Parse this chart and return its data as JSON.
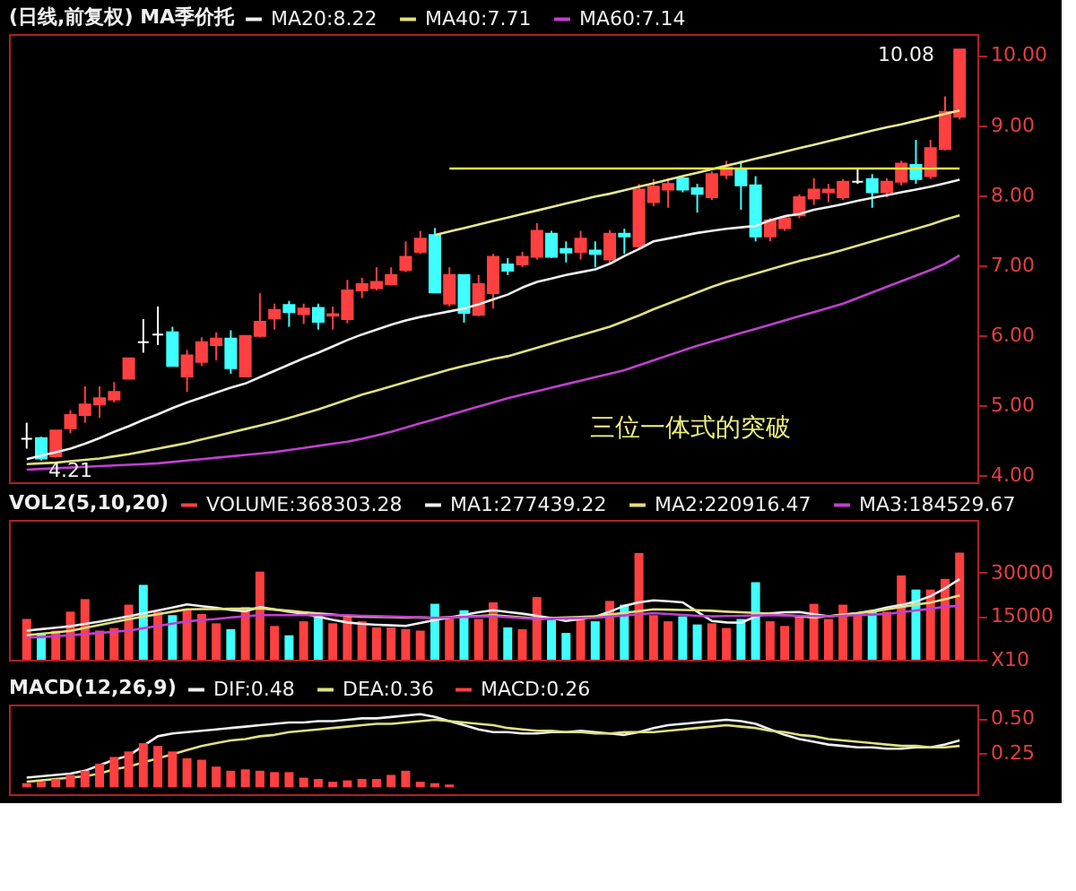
{
  "chart_data": [
    {
      "type": "candlestick",
      "legend_title": "(日线,前复权) MA季价托",
      "legend": "top",
      "tick_labels": "y",
      "grid": false,
      "categories": [
        null,
        null,
        null,
        null,
        null,
        null,
        null,
        null,
        null,
        null,
        null,
        null,
        null,
        null,
        null,
        null,
        null,
        null,
        null,
        null,
        null,
        null,
        null,
        null,
        null,
        null,
        null,
        null,
        null,
        null,
        null,
        null,
        null,
        null,
        null,
        null,
        null,
        null,
        null,
        null,
        null,
        null,
        null,
        null,
        null,
        null,
        null,
        null,
        null,
        null,
        null,
        null,
        null,
        null,
        null,
        null,
        null,
        null,
        null,
        null,
        null,
        null,
        null,
        null,
        null
      ],
      "ylim": [
        3.9,
        10.3
      ],
      "yticks": [
        {
          "value": 4,
          "label": "4.00"
        },
        {
          "value": 5,
          "label": "5.00"
        },
        {
          "value": 6,
          "label": "6.00"
        },
        {
          "value": 7,
          "label": "7.00"
        },
        {
          "value": 8,
          "label": "8.00"
        },
        {
          "value": 9,
          "label": "9.00"
        },
        {
          "value": 10,
          "label": "10.00"
        }
      ],
      "ohlc": [
        [
          4.52,
          4.75,
          4.38,
          4.52
        ],
        [
          4.53,
          4.55,
          4.21,
          4.24
        ],
        [
          4.27,
          4.64,
          4.25,
          4.64
        ],
        [
          4.67,
          4.93,
          4.6,
          4.86
        ],
        [
          4.86,
          5.27,
          4.75,
          5.01
        ],
        [
          5.01,
          5.27,
          4.82,
          5.1
        ],
        [
          5.08,
          5.33,
          5.04,
          5.19
        ],
        [
          5.38,
          5.67,
          5.38,
          5.67
        ],
        [
          5.9,
          6.23,
          5.75,
          5.9
        ],
        [
          6.01,
          6.41,
          5.86,
          6.01
        ],
        [
          6.04,
          6.12,
          5.56,
          5.56
        ],
        [
          5.41,
          5.79,
          5.19,
          5.71
        ],
        [
          5.62,
          5.97,
          5.56,
          5.9
        ],
        [
          5.86,
          6.04,
          5.64,
          5.95
        ],
        [
          5.95,
          6.07,
          5.45,
          5.53
        ],
        [
          5.41,
          5.99,
          5.41,
          5.99
        ],
        [
          5.99,
          6.6,
          5.97,
          6.19
        ],
        [
          6.24,
          6.45,
          6.08,
          6.36
        ],
        [
          6.43,
          6.49,
          6.12,
          6.33
        ],
        [
          6.3,
          6.45,
          6.16,
          6.38
        ],
        [
          6.39,
          6.45,
          6.08,
          6.19
        ],
        [
          6.28,
          6.41,
          6.08,
          6.3
        ],
        [
          6.23,
          6.79,
          6.17,
          6.64
        ],
        [
          6.64,
          6.82,
          6.53,
          6.73
        ],
        [
          6.67,
          6.97,
          6.64,
          6.76
        ],
        [
          6.73,
          6.97,
          6.71,
          6.86
        ],
        [
          6.93,
          7.34,
          6.9,
          7.12
        ],
        [
          7.19,
          7.49,
          7.16,
          7.38
        ],
        [
          7.43,
          7.53,
          6.6,
          6.61
        ],
        [
          6.45,
          6.97,
          6.41,
          6.86
        ],
        [
          6.86,
          6.86,
          6.18,
          6.32
        ],
        [
          6.29,
          6.86,
          6.27,
          6.73
        ],
        [
          6.6,
          7.16,
          6.38,
          7.12
        ],
        [
          7.01,
          7.1,
          6.86,
          6.92
        ],
        [
          7.01,
          7.19,
          6.97,
          7.12
        ],
        [
          7.12,
          7.6,
          7.08,
          7.49
        ],
        [
          7.45,
          7.49,
          7.1,
          7.12
        ],
        [
          7.23,
          7.34,
          7.04,
          7.18
        ],
        [
          7.19,
          7.49,
          7.08,
          7.38
        ],
        [
          7.21,
          7.34,
          6.97,
          7.16
        ],
        [
          7.08,
          7.5,
          7.04,
          7.45
        ],
        [
          7.45,
          7.52,
          7.16,
          7.41
        ],
        [
          7.27,
          8.16,
          7.23,
          8.08
        ],
        [
          7.9,
          8.23,
          7.84,
          8.12
        ],
        [
          8.08,
          8.24,
          7.82,
          8.16
        ],
        [
          8.24,
          8.27,
          8.04,
          8.08
        ],
        [
          8.1,
          8.16,
          7.75,
          8.02
        ],
        [
          7.97,
          8.34,
          7.93,
          8.3
        ],
        [
          8.29,
          8.49,
          8.23,
          8.39
        ],
        [
          8.36,
          8.49,
          7.79,
          8.14
        ],
        [
          8.14,
          8.27,
          7.34,
          7.41
        ],
        [
          7.41,
          7.67,
          7.34,
          7.64
        ],
        [
          7.53,
          7.71,
          7.49,
          7.67
        ],
        [
          7.71,
          8.01,
          7.67,
          7.97
        ],
        [
          7.95,
          8.24,
          7.86,
          8.08
        ],
        [
          8.04,
          8.16,
          7.9,
          8.08
        ],
        [
          7.97,
          8.23,
          7.93,
          8.19
        ],
        [
          8.19,
          8.38,
          8.16,
          8.19
        ],
        [
          8.23,
          8.3,
          7.82,
          8.04
        ],
        [
          8.04,
          8.24,
          7.97,
          8.19
        ],
        [
          8.19,
          8.49,
          8.14,
          8.45
        ],
        [
          8.43,
          8.79,
          8.16,
          8.23
        ],
        [
          8.27,
          8.79,
          8.23,
          8.67
        ],
        [
          8.66,
          9.41,
          8.64,
          9.19
        ],
        [
          9.12,
          10.08,
          9.08,
          10.08
        ]
      ],
      "colors": [
        "#ffffff",
        "#40ffff",
        "#ff4040",
        "#ff4040",
        "#ff4040",
        "#ff4040",
        "#ff4040",
        "#ff4040",
        "#ffffff",
        "#ffffff",
        "#40ffff",
        "#ff4040",
        "#ff4040",
        "#ff4040",
        "#40ffff",
        "#ff4040",
        "#ff4040",
        "#ff4040",
        "#40ffff",
        "#ff4040",
        "#40ffff",
        "#ff4040",
        "#ff4040",
        "#ff4040",
        "#ff4040",
        "#ff4040",
        "#ff4040",
        "#ff4040",
        "#40ffff",
        "#ff4040",
        "#40ffff",
        "#ff4040",
        "#ff4040",
        "#40ffff",
        "#ff4040",
        "#ff4040",
        "#40ffff",
        "#40ffff",
        "#ff4040",
        "#40ffff",
        "#ff4040",
        "#40ffff",
        "#ff4040",
        "#ff4040",
        "#ff4040",
        "#40ffff",
        "#40ffff",
        "#ff4040",
        "#ff4040",
        "#40ffff",
        "#40ffff",
        "#ff4040",
        "#ff4040",
        "#ff4040",
        "#ff4040",
        "#ff4040",
        "#ff4040",
        "#ffffff",
        "#40ffff",
        "#ff4040",
        "#ff4040",
        "#40ffff",
        "#ff4040",
        "#ff4040",
        "#ff4040"
      ],
      "series": [
        {
          "name": "MA20:8.22",
          "type": "line",
          "color": "#f0f0f0",
          "values": [
            4.23,
            4.28,
            4.33,
            4.38,
            4.45,
            4.53,
            4.62,
            4.7,
            4.79,
            4.87,
            4.96,
            5.04,
            5.11,
            5.18,
            5.25,
            5.31,
            5.4,
            5.49,
            5.58,
            5.67,
            5.75,
            5.84,
            5.93,
            6.01,
            6.08,
            6.15,
            6.21,
            6.26,
            6.3,
            6.34,
            6.38,
            6.44,
            6.51,
            6.58,
            6.68,
            6.76,
            6.81,
            6.86,
            6.9,
            6.94,
            7.02,
            7.13,
            7.23,
            7.34,
            7.38,
            7.42,
            7.46,
            7.49,
            7.52,
            7.54,
            7.56,
            7.64,
            7.7,
            7.73,
            7.79,
            7.83,
            7.87,
            7.92,
            7.96,
            8.0,
            8.04,
            8.08,
            8.12,
            8.17,
            8.22
          ]
        },
        {
          "name": "MA40:7.71",
          "type": "line",
          "color": "#e0e080",
          "values": [
            4.16,
            4.17,
            4.18,
            4.2,
            4.22,
            4.24,
            4.27,
            4.3,
            4.34,
            4.38,
            4.42,
            4.46,
            4.51,
            4.56,
            4.61,
            4.66,
            4.71,
            4.76,
            4.82,
            4.88,
            4.94,
            5.01,
            5.08,
            5.15,
            5.21,
            5.27,
            5.33,
            5.39,
            5.45,
            5.51,
            5.56,
            5.61,
            5.66,
            5.7,
            5.76,
            5.82,
            5.88,
            5.94,
            6.0,
            6.06,
            6.12,
            6.2,
            6.28,
            6.37,
            6.45,
            6.53,
            6.61,
            6.69,
            6.76,
            6.82,
            6.88,
            6.94,
            7.0,
            7.06,
            7.11,
            7.16,
            7.22,
            7.28,
            7.34,
            7.4,
            7.46,
            7.52,
            7.58,
            7.65,
            7.71
          ]
        },
        {
          "name": "MA60:7.14",
          "type": "line",
          "color": "#c040d0",
          "values": [
            4.08,
            4.09,
            4.1,
            4.11,
            4.12,
            4.13,
            4.14,
            4.15,
            4.16,
            4.17,
            4.19,
            4.21,
            4.23,
            4.25,
            4.27,
            4.29,
            4.31,
            4.33,
            4.36,
            4.39,
            4.42,
            4.45,
            4.48,
            4.52,
            4.57,
            4.62,
            4.68,
            4.74,
            4.8,
            4.86,
            4.92,
            4.98,
            5.04,
            5.1,
            5.15,
            5.2,
            5.25,
            5.3,
            5.35,
            5.4,
            5.45,
            5.5,
            5.57,
            5.64,
            5.71,
            5.78,
            5.85,
            5.91,
            5.97,
            6.03,
            6.09,
            6.15,
            6.21,
            6.27,
            6.33,
            6.39,
            6.45,
            6.53,
            6.61,
            6.69,
            6.77,
            6.85,
            6.93,
            7.02,
            7.14
          ]
        },
        {
          "type": "line",
          "color": "#e8e890",
          "values": [
            null,
            null,
            null,
            null,
            null,
            null,
            null,
            null,
            null,
            null,
            null,
            null,
            null,
            null,
            null,
            null,
            null,
            null,
            null,
            null,
            null,
            null,
            null,
            null,
            null,
            null,
            null,
            null,
            7.43,
            7.48,
            7.53,
            7.58,
            7.63,
            7.68,
            7.73,
            7.78,
            7.83,
            7.88,
            7.93,
            7.98,
            8.02,
            8.07,
            8.12,
            8.17,
            8.22,
            8.27,
            8.32,
            8.37,
            8.42,
            8.47,
            8.52,
            8.57,
            8.62,
            8.67,
            8.72,
            8.77,
            8.82,
            8.87,
            8.92,
            8.97,
            9.01,
            9.06,
            9.11,
            9.16,
            9.21
          ]
        },
        {
          "type": "line",
          "color": "#e8e840",
          "values": [
            null,
            null,
            null,
            null,
            null,
            null,
            null,
            null,
            null,
            null,
            null,
            null,
            null,
            null,
            null,
            null,
            null,
            null,
            null,
            null,
            null,
            null,
            null,
            null,
            null,
            null,
            null,
            null,
            null,
            8.38,
            8.38,
            8.38,
            8.38,
            8.38,
            8.38,
            8.38,
            8.38,
            8.38,
            8.38,
            8.38,
            8.38,
            8.38,
            8.38,
            8.38,
            8.38,
            8.38,
            8.38,
            8.38,
            8.38,
            8.38,
            8.38,
            8.38,
            8.38,
            8.38,
            8.38,
            8.38,
            8.38,
            8.38,
            8.38,
            8.38,
            8.38,
            8.38,
            8.38,
            8.38,
            8.38
          ]
        }
      ],
      "annotations": [
        "10.08",
        "4.21",
        "三位一体式的突破"
      ]
    },
    {
      "type": "bar",
      "legend_title": "VOL2(5,10,20)",
      "legend": "top",
      "tick_labels": "y",
      "grid": false,
      "categories": [
        null,
        null,
        null,
        null,
        null,
        null,
        null,
        null,
        null,
        null,
        null,
        null,
        null,
        null,
        null,
        null,
        null,
        null,
        null,
        null,
        null,
        null,
        null,
        null,
        null,
        null,
        null,
        null,
        null,
        null,
        null,
        null,
        null,
        null,
        null,
        null,
        null,
        null,
        null,
        null,
        null,
        null,
        null,
        null,
        null,
        null,
        null,
        null,
        null,
        null,
        null,
        null,
        null,
        null,
        null,
        null,
        null,
        null,
        null,
        null,
        null,
        null,
        null,
        null,
        null
      ],
      "ylim": [
        0,
        48000
      ],
      "yticks": [
        {
          "value": 0,
          "label": "X10"
        },
        15000,
        30000
      ],
      "series": [
        {
          "name": "VOLUME:368303.28",
          "color": "#ff4040",
          "values": [
            14000,
            9200,
            10000,
            16500,
            20800,
            10000,
            10900,
            18900,
            25700,
            16500,
            15300,
            17300,
            15700,
            12500,
            10500,
            18100,
            30200,
            11600,
            8400,
            13200,
            15300,
            12500,
            14900,
            13200,
            11100,
            11100,
            10500,
            10000,
            19200,
            14400,
            17000,
            14000,
            19700,
            11100,
            10500,
            21500,
            13700,
            9200,
            14000,
            13200,
            20200,
            18900,
            36600,
            15300,
            13200,
            14900,
            12100,
            12500,
            10900,
            14000,
            26600,
            13200,
            11600,
            14900,
            19200,
            14000,
            18900,
            15700,
            16500,
            16500,
            28900,
            24100,
            24100,
            27800,
            36800
          ],
          "colors": [
            "#ff4040",
            "#40ffff",
            "#ff4040",
            "#ff4040",
            "#ff4040",
            "#ff4040",
            "#ff4040",
            "#ff4040",
            "#40ffff",
            "#ff4040",
            "#40ffff",
            "#ff4040",
            "#ff4040",
            "#ff4040",
            "#40ffff",
            "#ff4040",
            "#ff4040",
            "#ff4040",
            "#40ffff",
            "#ff4040",
            "#40ffff",
            "#ff4040",
            "#ff4040",
            "#ff4040",
            "#ff4040",
            "#ff4040",
            "#ff4040",
            "#ff4040",
            "#40ffff",
            "#ff4040",
            "#40ffff",
            "#ff4040",
            "#ff4040",
            "#40ffff",
            "#ff4040",
            "#ff4040",
            "#40ffff",
            "#40ffff",
            "#ff4040",
            "#40ffff",
            "#ff4040",
            "#40ffff",
            "#ff4040",
            "#ff4040",
            "#ff4040",
            "#40ffff",
            "#40ffff",
            "#ff4040",
            "#ff4040",
            "#40ffff",
            "#40ffff",
            "#ff4040",
            "#ff4040",
            "#ff4040",
            "#ff4040",
            "#ff4040",
            "#ff4040",
            "#ff4040",
            "#40ffff",
            "#ff4040",
            "#ff4040",
            "#40ffff",
            "#ff4040",
            "#ff4040",
            "#ff4040"
          ]
        },
        {
          "name": "MA1:277439.22",
          "type": "line",
          "color": "#f0f0f0",
          "values": [
            10000,
            10500,
            11000,
            11500,
            12300,
            13100,
            14000,
            14900,
            15900,
            16900,
            17900,
            19000,
            18400,
            17800,
            17100,
            16600,
            18100,
            17300,
            16500,
            15800,
            14800,
            13700,
            12800,
            12300,
            12000,
            11800,
            11600,
            12600,
            13600,
            14500,
            15400,
            16300,
            17000,
            16400,
            15800,
            15100,
            14300,
            13300,
            14000,
            14800,
            16500,
            18500,
            19700,
            20400,
            20100,
            19700,
            16500,
            13300,
            12800,
            12700,
            14800,
            15900,
            16300,
            16400,
            15600,
            14900,
            15400,
            16000,
            16800,
            17900,
            18800,
            20000,
            21800,
            24500,
            27700
          ]
        },
        {
          "name": "MA2:220916.47",
          "type": "line",
          "color": "#e0e080",
          "values": [
            8400,
            8900,
            9400,
            9900,
            10900,
            11900,
            12900,
            13900,
            14800,
            15600,
            16500,
            17300,
            17400,
            17400,
            17500,
            17500,
            17600,
            17200,
            16800,
            16300,
            15900,
            15500,
            15100,
            14800,
            14700,
            14600,
            14500,
            14500,
            14400,
            14600,
            14800,
            15000,
            15300,
            14900,
            14500,
            14100,
            14300,
            14500,
            14700,
            14900,
            15500,
            16100,
            16700,
            17300,
            17200,
            17100,
            17000,
            16800,
            16500,
            16300,
            16100,
            15800,
            15300,
            14900,
            14500,
            14900,
            15500,
            16000,
            16500,
            17300,
            18100,
            18900,
            19600,
            20800,
            22100
          ]
        },
        {
          "name": "MA3:184529.67",
          "type": "line",
          "color": "#c040d0",
          "values": [
            7600,
            7800,
            8100,
            8400,
            8800,
            9200,
            9600,
            10000,
            10800,
            11600,
            12400,
            13200,
            13600,
            14000,
            14500,
            14900,
            15300,
            15300,
            15300,
            15300,
            15300,
            15300,
            15300,
            15100,
            15000,
            14800,
            14700,
            14500,
            14400,
            14500,
            14700,
            14800,
            14900,
            14600,
            14300,
            14000,
            14100,
            14200,
            14300,
            14400,
            14800,
            15200,
            15600,
            16000,
            15700,
            15400,
            15100,
            14900,
            15000,
            15100,
            15200,
            15300,
            15200,
            15100,
            15000,
            14900,
            15100,
            15300,
            15500,
            15700,
            16300,
            16900,
            17500,
            18200,
            18500
          ]
        }
      ]
    },
    {
      "type": "line",
      "legend_title": "MACD(12,26,9)",
      "legend": "top",
      "tick_labels": "y",
      "grid": false,
      "categories": [
        null,
        null,
        null,
        null,
        null,
        null,
        null,
        null,
        null,
        null,
        null,
        null,
        null,
        null,
        null,
        null,
        null,
        null,
        null,
        null,
        null,
        null,
        null,
        null,
        null,
        null,
        null,
        null,
        null,
        null,
        null,
        null,
        null,
        null,
        null,
        null,
        null,
        null,
        null,
        null,
        null,
        null,
        null,
        null,
        null,
        null,
        null,
        null,
        null,
        null,
        null,
        null,
        null,
        null,
        null,
        null,
        null,
        null,
        null,
        null,
        null,
        null,
        null,
        null,
        null
      ],
      "ylim": [
        -0.05,
        0.6
      ],
      "yticks": [
        {
          "value": 0.25,
          "label": "0.25"
        },
        {
          "value": 0.5,
          "label": "0.50"
        }
      ],
      "series": [
        {
          "name": "DIF:0.48",
          "color": "#f0f0f0",
          "values": [
            0.07,
            0.08,
            0.09,
            0.1,
            0.12,
            0.16,
            0.2,
            0.23,
            0.3,
            0.37,
            0.39,
            0.4,
            0.41,
            0.42,
            0.43,
            0.44,
            0.45,
            0.46,
            0.47,
            0.47,
            0.48,
            0.48,
            0.49,
            0.5,
            0.5,
            0.51,
            0.52,
            0.53,
            0.51,
            0.48,
            0.45,
            0.42,
            0.4,
            0.4,
            0.39,
            0.39,
            0.4,
            0.4,
            0.41,
            0.4,
            0.39,
            0.38,
            0.4,
            0.43,
            0.45,
            0.46,
            0.47,
            0.48,
            0.49,
            0.48,
            0.46,
            0.42,
            0.38,
            0.35,
            0.33,
            0.31,
            0.3,
            0.29,
            0.29,
            0.28,
            0.28,
            0.29,
            0.29,
            0.31,
            0.34
          ]
        },
        {
          "name": "DEA:0.36",
          "color": "#e0e080",
          "values": [
            0.04,
            0.05,
            0.06,
            0.07,
            0.08,
            0.1,
            0.13,
            0.15,
            0.18,
            0.21,
            0.24,
            0.27,
            0.3,
            0.32,
            0.34,
            0.35,
            0.37,
            0.38,
            0.4,
            0.41,
            0.42,
            0.43,
            0.44,
            0.45,
            0.46,
            0.46,
            0.47,
            0.48,
            0.49,
            0.48,
            0.47,
            0.46,
            0.45,
            0.43,
            0.42,
            0.41,
            0.41,
            0.4,
            0.4,
            0.39,
            0.39,
            0.4,
            0.4,
            0.4,
            0.41,
            0.42,
            0.43,
            0.44,
            0.45,
            0.44,
            0.43,
            0.41,
            0.4,
            0.38,
            0.37,
            0.35,
            0.34,
            0.33,
            0.32,
            0.31,
            0.3,
            0.3,
            0.29,
            0.29,
            0.3
          ]
        },
        {
          "name": "MACD:0.26",
          "type": "bar",
          "color": "#ff4040",
          "values": [
            0.03,
            0.04,
            0.06,
            0.09,
            0.12,
            0.17,
            0.22,
            0.26,
            0.32,
            0.3,
            0.26,
            0.21,
            0.2,
            0.15,
            0.12,
            0.13,
            0.12,
            0.11,
            0.11,
            0.07,
            0.06,
            0.04,
            0.05,
            0.06,
            0.06,
            0.09,
            0.12,
            0.04,
            0.03,
            0.02,
            null,
            null,
            null,
            null,
            null,
            null,
            null,
            null,
            null,
            null,
            null,
            null,
            null,
            null,
            null,
            null,
            null,
            null,
            null,
            null,
            null,
            null,
            null,
            null,
            null,
            null,
            null,
            null,
            null,
            null,
            null,
            null,
            null,
            null,
            null
          ]
        }
      ]
    }
  ]
}
